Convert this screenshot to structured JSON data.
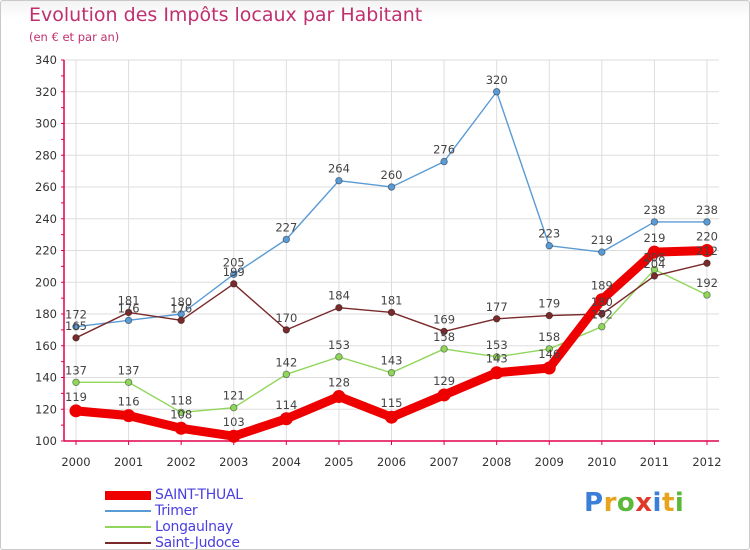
{
  "title": "Evolution des Impôts locaux par Habitant",
  "subtitle": "(en € et par an)",
  "brand": "Proxiti",
  "colors": {
    "title": "#c0306e",
    "legend_text": "#4a3fe0",
    "axis": "#e0004d",
    "grid": "#dddddd",
    "tick_label": "#333333",
    "value_label": "#444444",
    "logo": [
      "#3a7fd8",
      "#e8a41c",
      "#5cb83a",
      "#e0392a",
      "#3a7fd8",
      "#e8a41c",
      "#5cb83a"
    ]
  },
  "chart_data": {
    "type": "line",
    "title": "Evolution des Impôts locaux par Habitant",
    "subtitle": "(en € et par an)",
    "xlabel": "",
    "ylabel": "",
    "x": [
      "2000",
      "2001",
      "2002",
      "2003",
      "2004",
      "2005",
      "2006",
      "2007",
      "2008",
      "2009",
      "2010",
      "2011",
      "2012"
    ],
    "ylim": [
      100,
      340
    ],
    "yticks": [
      "100",
      "120",
      "140",
      "160",
      "180",
      "200",
      "220",
      "240",
      "260",
      "280",
      "300",
      "320",
      "340"
    ],
    "grid": true,
    "legend_position": "bottom-left",
    "series": [
      {
        "name": "SAINT-THUAL",
        "color": "#ee0000",
        "values": [
          119,
          116,
          108,
          103,
          114,
          128,
          115,
          129,
          143,
          146,
          189,
          219,
          220
        ],
        "labels": [
          "119",
          "116",
          "108",
          "103",
          "114",
          "128",
          "115",
          "129",
          "143",
          "146",
          "189",
          "219",
          "220"
        ]
      },
      {
        "name": "Trimer",
        "color": "#5b9bd5",
        "values": [
          172,
          176,
          180,
          205,
          227,
          264,
          260,
          276,
          320,
          223,
          219,
          238,
          238
        ],
        "labels": [
          "172",
          "176",
          "180",
          "205",
          "227",
          "264",
          "260",
          "276",
          "320",
          "223",
          "219",
          "238",
          "238"
        ]
      },
      {
        "name": "Longaulnay",
        "color": "#8fd65a",
        "values": [
          137,
          137,
          118,
          121,
          142,
          153,
          143,
          158,
          153,
          158,
          172,
          208,
          192
        ],
        "labels": [
          "137",
          "137",
          "118",
          "121",
          "142",
          "153",
          "143",
          "158",
          "153",
          "158",
          "172",
          "208",
          "192"
        ]
      },
      {
        "name": "Saint-Judoce",
        "color": "#7a2a2a",
        "values": [
          165,
          181,
          176,
          199,
          170,
          184,
          181,
          169,
          177,
          179,
          180,
          204,
          212
        ],
        "labels": [
          "165",
          "181",
          "176",
          "199",
          "170",
          "184",
          "181",
          "169",
          "177",
          "179",
          "180",
          "204",
          "212"
        ]
      }
    ]
  }
}
